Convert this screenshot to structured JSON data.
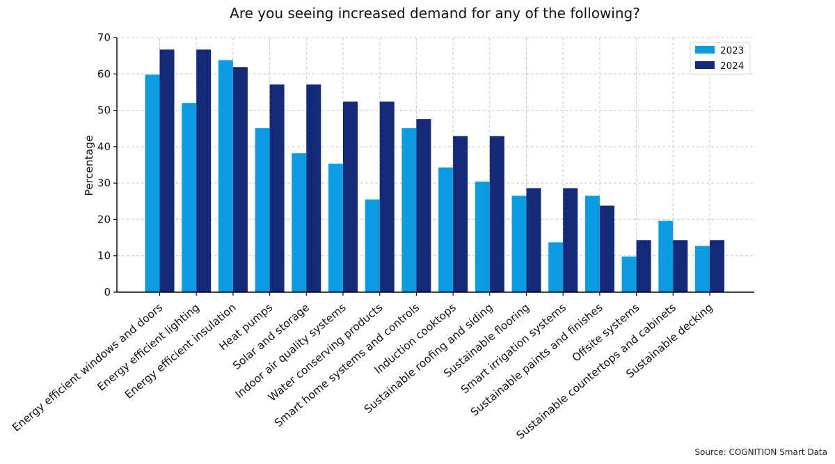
{
  "chart_data": {
    "type": "bar",
    "title": "Are you seeing increased demand for any of the following?",
    "xlabel": "",
    "ylabel": "Percentage",
    "ylim": [
      0,
      70
    ],
    "yticks": [
      0,
      10,
      20,
      30,
      40,
      50,
      60,
      70
    ],
    "grid": true,
    "legend_position": "top-right",
    "categories": [
      "Energy efficient windows and doors",
      "Energy efficient lighting",
      "Energy efficient insulation",
      "Heat pumps",
      "Solar and storage",
      "Indoor air quality systems",
      "Water conserving products",
      "Smart home systems and controls",
      "Induction cooktops",
      "Sustainable roofing and siding",
      "Sustainable flooring",
      "Smart irrigation systems",
      "Sustainable paints and finishes",
      "Offsite systems",
      "Sustainable countertops and cabinets",
      "Sustainable decking"
    ],
    "series": [
      {
        "name": "2023",
        "color": "#0b9be0",
        "values": [
          59.8,
          52.0,
          63.8,
          45.1,
          38.2,
          35.3,
          25.5,
          45.1,
          34.3,
          30.4,
          26.5,
          13.7,
          26.5,
          9.8,
          19.6,
          12.7
        ]
      },
      {
        "name": "2024",
        "color": "#132a78",
        "values": [
          66.7,
          66.7,
          61.9,
          57.1,
          57.1,
          52.4,
          52.4,
          47.6,
          42.9,
          42.9,
          28.6,
          28.6,
          23.8,
          14.3,
          14.3,
          14.3
        ]
      }
    ],
    "source": "Source: COGNITION Smart Data"
  }
}
